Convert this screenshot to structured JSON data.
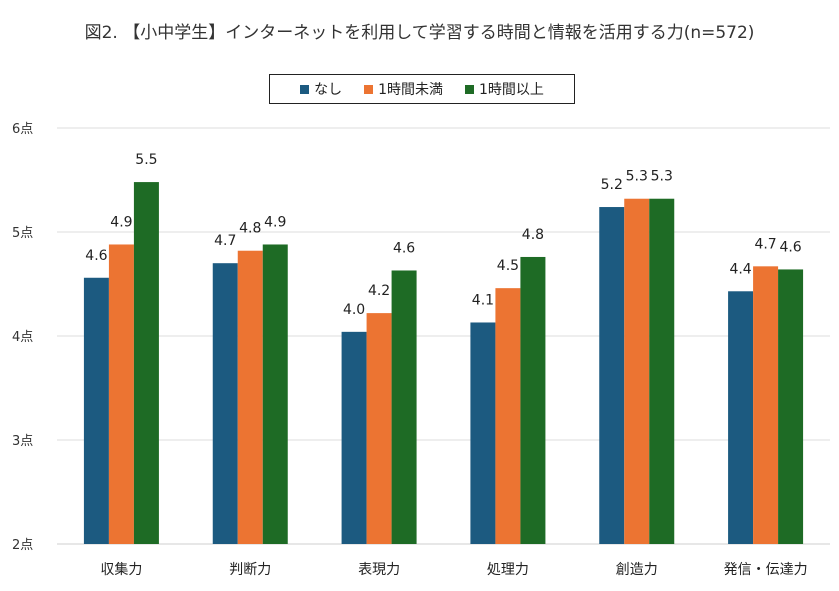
{
  "chart_data": {
    "type": "bar",
    "title": "図2. 【小中学生】インターネットを利用して学習する時間と情報を活用する力(n=572)",
    "categories": [
      "収集力",
      "判断力",
      "表現力",
      "処理力",
      "創造力",
      "発信・伝達力"
    ],
    "series": [
      {
        "name": "なし",
        "color": "#1C5A80",
        "values": [
          4.56,
          4.7,
          4.04,
          4.13,
          5.24,
          4.43
        ]
      },
      {
        "name": "1時間未満",
        "color": "#EC7432",
        "values": [
          4.88,
          4.82,
          4.22,
          4.46,
          5.32,
          4.67
        ]
      },
      {
        "name": "1時間以上",
        "color": "#1E6B25",
        "values": [
          5.48,
          4.88,
          4.63,
          4.76,
          5.32,
          4.64
        ]
      }
    ],
    "ylim": [
      2,
      6
    ],
    "yticks": [
      "2点",
      "3点",
      "4点",
      "5点",
      "6点"
    ],
    "xlabel": "",
    "ylabel": "",
    "grid": true,
    "legend_position": "top"
  }
}
